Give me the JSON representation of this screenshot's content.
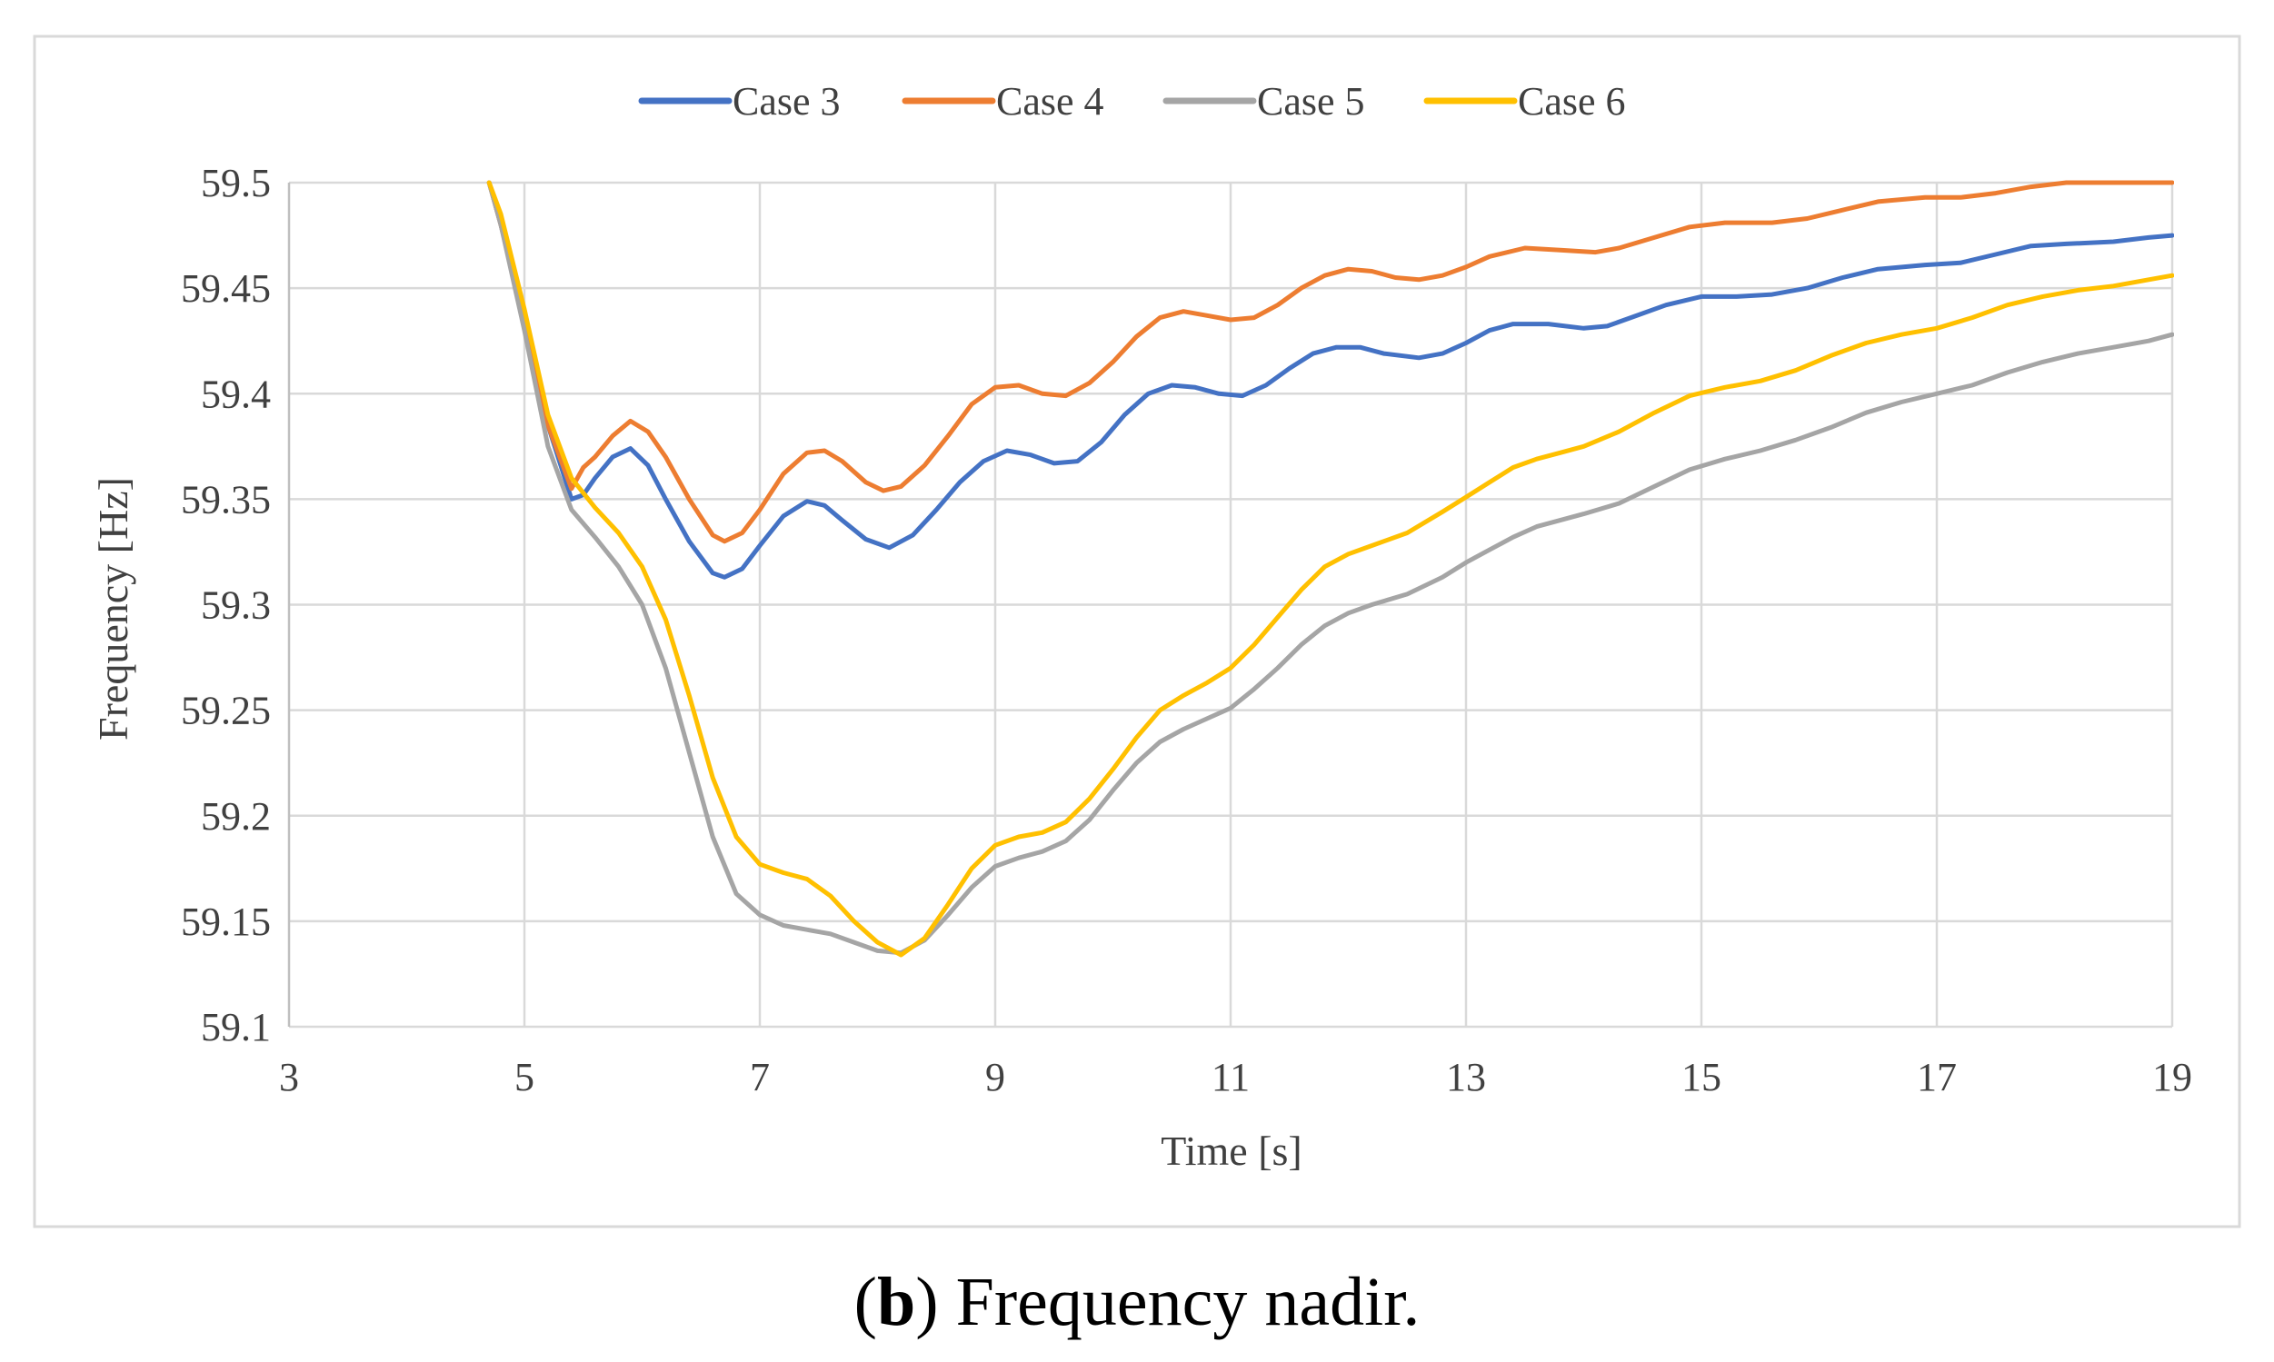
{
  "chart_data": {
    "type": "line",
    "title": "",
    "xlabel": "Time [s]",
    "ylabel": "Frequency [Hz]",
    "xlim": [
      3,
      19
    ],
    "ylim": [
      59.1,
      59.5
    ],
    "x_ticks": [
      3,
      5,
      7,
      9,
      11,
      13,
      15,
      17,
      19
    ],
    "x_tick_labels": [
      "3",
      "5",
      "7",
      "9",
      "11",
      "13",
      "15",
      "17",
      "19"
    ],
    "y_ticks": [
      59.1,
      59.15,
      59.2,
      59.25,
      59.3,
      59.35,
      59.4,
      59.45,
      59.5
    ],
    "y_tick_labels": [
      "59.1",
      "59.15",
      "59.2",
      "59.25",
      "59.3",
      "59.35",
      "59.4",
      "59.45",
      "59.5"
    ],
    "grid": true,
    "legend_position": "top-center",
    "series": [
      {
        "name": "Case 3",
        "color": "#4472c4",
        "points": [
          [
            4.7,
            59.5
          ],
          [
            4.8,
            59.48
          ],
          [
            5.0,
            59.435
          ],
          [
            5.2,
            59.385
          ],
          [
            5.4,
            59.35
          ],
          [
            5.5,
            59.352
          ],
          [
            5.6,
            59.36
          ],
          [
            5.75,
            59.37
          ],
          [
            5.9,
            59.374
          ],
          [
            6.05,
            59.366
          ],
          [
            6.2,
            59.35
          ],
          [
            6.4,
            59.33
          ],
          [
            6.6,
            59.315
          ],
          [
            6.7,
            59.313
          ],
          [
            6.85,
            59.317
          ],
          [
            7.0,
            59.328
          ],
          [
            7.2,
            59.342
          ],
          [
            7.4,
            59.349
          ],
          [
            7.55,
            59.347
          ],
          [
            7.7,
            59.34
          ],
          [
            7.9,
            59.331
          ],
          [
            8.1,
            59.327
          ],
          [
            8.3,
            59.333
          ],
          [
            8.5,
            59.345
          ],
          [
            8.7,
            59.358
          ],
          [
            8.9,
            59.368
          ],
          [
            9.1,
            59.373
          ],
          [
            9.3,
            59.371
          ],
          [
            9.5,
            59.367
          ],
          [
            9.7,
            59.368
          ],
          [
            9.9,
            59.377
          ],
          [
            10.1,
            59.39
          ],
          [
            10.3,
            59.4
          ],
          [
            10.5,
            59.404
          ],
          [
            10.7,
            59.403
          ],
          [
            10.9,
            59.4
          ],
          [
            11.1,
            59.399
          ],
          [
            11.3,
            59.404
          ],
          [
            11.5,
            59.412
          ],
          [
            11.7,
            59.419
          ],
          [
            11.9,
            59.422
          ],
          [
            12.1,
            59.422
          ],
          [
            12.3,
            59.419
          ],
          [
            12.6,
            59.417
          ],
          [
            12.8,
            59.419
          ],
          [
            13.0,
            59.424
          ],
          [
            13.2,
            59.43
          ],
          [
            13.4,
            59.433
          ],
          [
            13.7,
            59.433
          ],
          [
            14.0,
            59.431
          ],
          [
            14.2,
            59.432
          ],
          [
            14.4,
            59.436
          ],
          [
            14.7,
            59.442
          ],
          [
            15.0,
            59.446
          ],
          [
            15.3,
            59.446
          ],
          [
            15.6,
            59.447
          ],
          [
            15.9,
            59.45
          ],
          [
            16.2,
            59.455
          ],
          [
            16.5,
            59.459
          ],
          [
            16.9,
            59.461
          ],
          [
            17.2,
            59.462
          ],
          [
            17.5,
            59.466
          ],
          [
            17.8,
            59.47
          ],
          [
            18.1,
            59.471
          ],
          [
            18.5,
            59.472
          ],
          [
            18.8,
            59.474
          ],
          [
            19.0,
            59.475
          ]
        ]
      },
      {
        "name": "Case 4",
        "color": "#ed7d31",
        "points": [
          [
            4.7,
            59.5
          ],
          [
            4.8,
            59.48
          ],
          [
            5.0,
            59.435
          ],
          [
            5.2,
            59.385
          ],
          [
            5.4,
            59.355
          ],
          [
            5.5,
            59.365
          ],
          [
            5.6,
            59.37
          ],
          [
            5.75,
            59.38
          ],
          [
            5.9,
            59.387
          ],
          [
            6.05,
            59.382
          ],
          [
            6.2,
            59.37
          ],
          [
            6.4,
            59.35
          ],
          [
            6.6,
            59.333
          ],
          [
            6.7,
            59.33
          ],
          [
            6.85,
            59.334
          ],
          [
            7.0,
            59.345
          ],
          [
            7.2,
            59.362
          ],
          [
            7.4,
            59.372
          ],
          [
            7.55,
            59.373
          ],
          [
            7.7,
            59.368
          ],
          [
            7.9,
            59.358
          ],
          [
            8.05,
            59.354
          ],
          [
            8.2,
            59.356
          ],
          [
            8.4,
            59.366
          ],
          [
            8.6,
            59.38
          ],
          [
            8.8,
            59.395
          ],
          [
            9.0,
            59.403
          ],
          [
            9.2,
            59.404
          ],
          [
            9.4,
            59.4
          ],
          [
            9.6,
            59.399
          ],
          [
            9.8,
            59.405
          ],
          [
            10.0,
            59.415
          ],
          [
            10.2,
            59.427
          ],
          [
            10.4,
            59.436
          ],
          [
            10.6,
            59.439
          ],
          [
            10.8,
            59.437
          ],
          [
            11.0,
            59.435
          ],
          [
            11.2,
            59.436
          ],
          [
            11.4,
            59.442
          ],
          [
            11.6,
            59.45
          ],
          [
            11.8,
            59.456
          ],
          [
            12.0,
            59.459
          ],
          [
            12.2,
            59.458
          ],
          [
            12.4,
            59.455
          ],
          [
            12.6,
            59.454
          ],
          [
            12.8,
            59.456
          ],
          [
            13.0,
            59.46
          ],
          [
            13.2,
            59.465
          ],
          [
            13.5,
            59.469
          ],
          [
            13.8,
            59.468
          ],
          [
            14.1,
            59.467
          ],
          [
            14.3,
            59.469
          ],
          [
            14.6,
            59.474
          ],
          [
            14.9,
            59.479
          ],
          [
            15.2,
            59.481
          ],
          [
            15.6,
            59.481
          ],
          [
            15.9,
            59.483
          ],
          [
            16.2,
            59.487
          ],
          [
            16.5,
            59.491
          ],
          [
            16.9,
            59.493
          ],
          [
            17.2,
            59.493
          ],
          [
            17.5,
            59.495
          ],
          [
            17.8,
            59.498
          ],
          [
            18.1,
            59.5
          ],
          [
            18.5,
            59.5
          ],
          [
            19.0,
            59.5
          ]
        ]
      },
      {
        "name": "Case 5",
        "color": "#a5a5a5",
        "points": [
          [
            4.7,
            59.5
          ],
          [
            4.8,
            59.48
          ],
          [
            5.0,
            59.43
          ],
          [
            5.2,
            59.375
          ],
          [
            5.4,
            59.345
          ],
          [
            5.6,
            59.332
          ],
          [
            5.8,
            59.318
          ],
          [
            6.0,
            59.3
          ],
          [
            6.2,
            59.27
          ],
          [
            6.4,
            59.23
          ],
          [
            6.6,
            59.19
          ],
          [
            6.8,
            59.163
          ],
          [
            7.0,
            59.153
          ],
          [
            7.2,
            59.148
          ],
          [
            7.4,
            59.146
          ],
          [
            7.6,
            59.144
          ],
          [
            7.8,
            59.14
          ],
          [
            8.0,
            59.136
          ],
          [
            8.2,
            59.135
          ],
          [
            8.4,
            59.141
          ],
          [
            8.6,
            59.153
          ],
          [
            8.8,
            59.166
          ],
          [
            9.0,
            59.176
          ],
          [
            9.2,
            59.18
          ],
          [
            9.4,
            59.183
          ],
          [
            9.6,
            59.188
          ],
          [
            9.8,
            59.198
          ],
          [
            10.0,
            59.212
          ],
          [
            10.2,
            59.225
          ],
          [
            10.4,
            59.235
          ],
          [
            10.6,
            59.241
          ],
          [
            10.8,
            59.246
          ],
          [
            11.0,
            59.251
          ],
          [
            11.2,
            59.26
          ],
          [
            11.4,
            59.27
          ],
          [
            11.6,
            59.281
          ],
          [
            11.8,
            59.29
          ],
          [
            12.0,
            59.296
          ],
          [
            12.2,
            59.3
          ],
          [
            12.5,
            59.305
          ],
          [
            12.8,
            59.313
          ],
          [
            13.0,
            59.32
          ],
          [
            13.2,
            59.326
          ],
          [
            13.4,
            59.332
          ],
          [
            13.6,
            59.337
          ],
          [
            13.8,
            59.34
          ],
          [
            14.0,
            59.343
          ],
          [
            14.3,
            59.348
          ],
          [
            14.6,
            59.356
          ],
          [
            14.9,
            59.364
          ],
          [
            15.2,
            59.369
          ],
          [
            15.5,
            59.373
          ],
          [
            15.8,
            59.378
          ],
          [
            16.1,
            59.384
          ],
          [
            16.4,
            59.391
          ],
          [
            16.7,
            59.396
          ],
          [
            17.0,
            59.4
          ],
          [
            17.3,
            59.404
          ],
          [
            17.6,
            59.41
          ],
          [
            17.9,
            59.415
          ],
          [
            18.2,
            59.419
          ],
          [
            18.5,
            59.422
          ],
          [
            18.8,
            59.425
          ],
          [
            19.0,
            59.428
          ]
        ]
      },
      {
        "name": "Case 6",
        "color": "#ffc000",
        "points": [
          [
            4.7,
            59.5
          ],
          [
            4.8,
            59.485
          ],
          [
            5.0,
            59.44
          ],
          [
            5.2,
            59.39
          ],
          [
            5.4,
            59.36
          ],
          [
            5.6,
            59.346
          ],
          [
            5.8,
            59.334
          ],
          [
            6.0,
            59.318
          ],
          [
            6.2,
            59.293
          ],
          [
            6.4,
            59.257
          ],
          [
            6.6,
            59.218
          ],
          [
            6.8,
            59.19
          ],
          [
            7.0,
            59.177
          ],
          [
            7.2,
            59.173
          ],
          [
            7.4,
            59.17
          ],
          [
            7.6,
            59.162
          ],
          [
            7.8,
            59.15
          ],
          [
            8.0,
            59.14
          ],
          [
            8.2,
            59.134
          ],
          [
            8.4,
            59.142
          ],
          [
            8.6,
            59.158
          ],
          [
            8.8,
            59.175
          ],
          [
            9.0,
            59.186
          ],
          [
            9.2,
            59.19
          ],
          [
            9.4,
            59.192
          ],
          [
            9.6,
            59.197
          ],
          [
            9.8,
            59.208
          ],
          [
            10.0,
            59.222
          ],
          [
            10.2,
            59.237
          ],
          [
            10.4,
            59.25
          ],
          [
            10.6,
            59.257
          ],
          [
            10.8,
            59.263
          ],
          [
            11.0,
            59.27
          ],
          [
            11.2,
            59.281
          ],
          [
            11.4,
            59.294
          ],
          [
            11.6,
            59.307
          ],
          [
            11.8,
            59.318
          ],
          [
            12.0,
            59.324
          ],
          [
            12.2,
            59.328
          ],
          [
            12.5,
            59.334
          ],
          [
            12.8,
            59.344
          ],
          [
            13.0,
            59.351
          ],
          [
            13.2,
            59.358
          ],
          [
            13.4,
            59.365
          ],
          [
            13.6,
            59.369
          ],
          [
            13.8,
            59.372
          ],
          [
            14.0,
            59.375
          ],
          [
            14.3,
            59.382
          ],
          [
            14.6,
            59.391
          ],
          [
            14.9,
            59.399
          ],
          [
            15.2,
            59.403
          ],
          [
            15.5,
            59.406
          ],
          [
            15.8,
            59.411
          ],
          [
            16.1,
            59.418
          ],
          [
            16.4,
            59.424
          ],
          [
            16.7,
            59.428
          ],
          [
            17.0,
            59.431
          ],
          [
            17.3,
            59.436
          ],
          [
            17.6,
            59.442
          ],
          [
            17.9,
            59.446
          ],
          [
            18.2,
            59.449
          ],
          [
            18.5,
            59.451
          ],
          [
            18.8,
            59.454
          ],
          [
            19.0,
            59.456
          ]
        ]
      }
    ]
  },
  "caption": {
    "label": "b",
    "text": "Frequency nadir."
  }
}
